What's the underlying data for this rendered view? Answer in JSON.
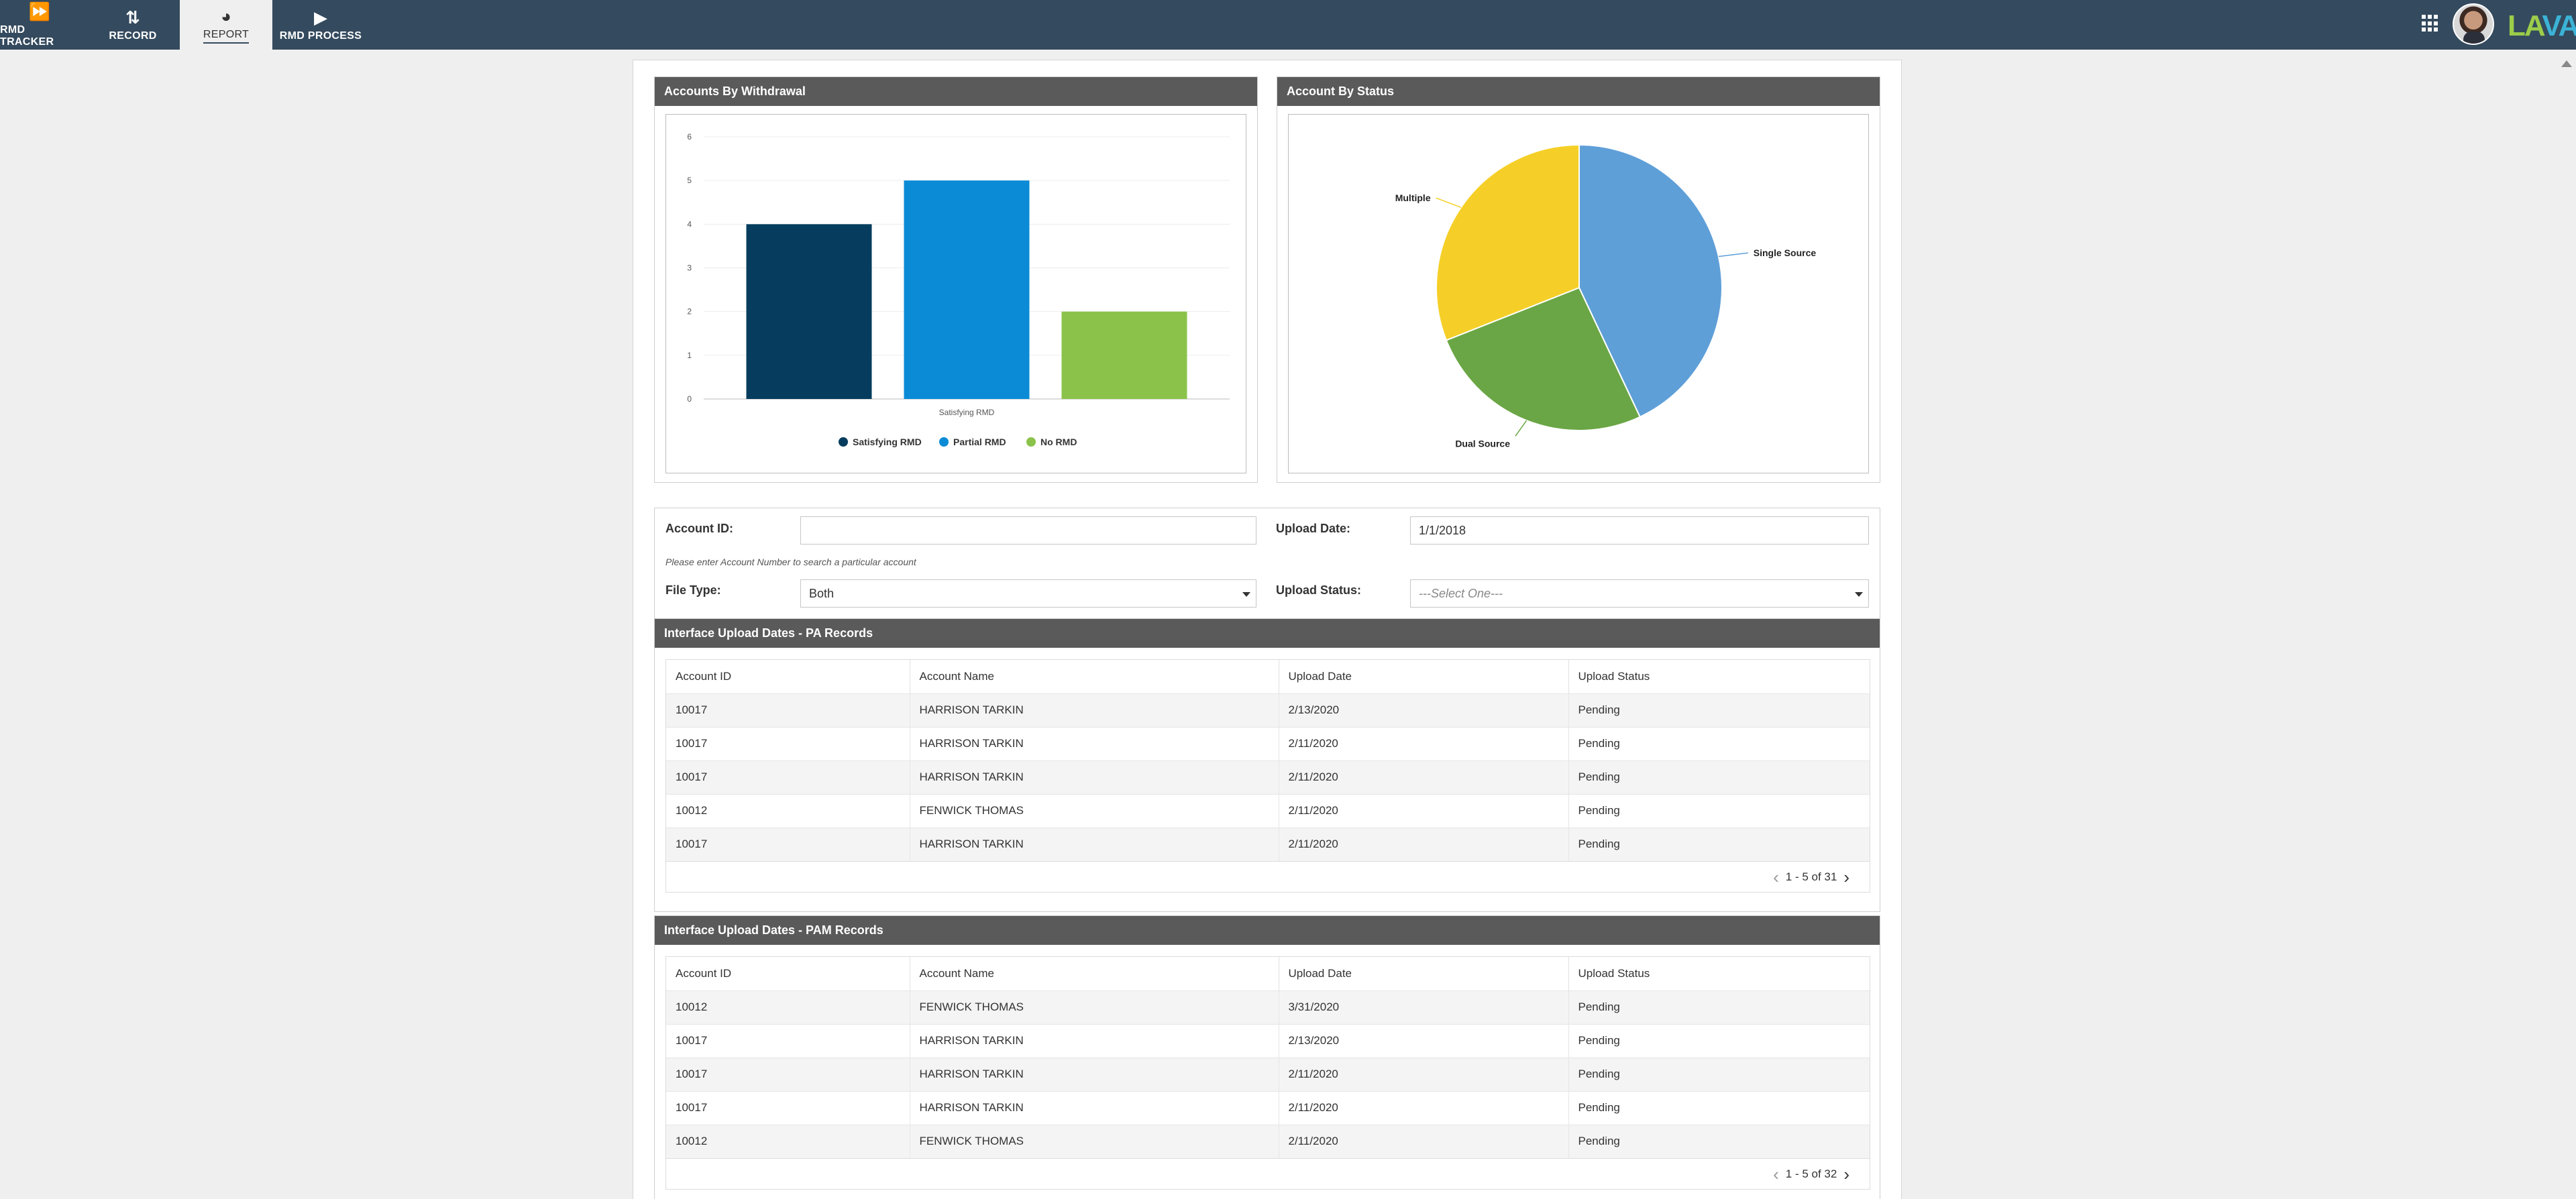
{
  "nav": {
    "items": [
      {
        "label": "RMD TRACKER",
        "icon": "⏩"
      },
      {
        "label": "RECORD",
        "icon": "⇅"
      },
      {
        "label": "REPORT",
        "icon": "◕"
      },
      {
        "label": "RMD PROCESS",
        "icon": "▶"
      }
    ],
    "active": "REPORT",
    "logo_part1": "LA",
    "logo_part2": "VA"
  },
  "charts_panel": {
    "withdrawal_title": "Accounts By Withdrawal",
    "status_title": "Account By Status"
  },
  "chart_data": [
    {
      "type": "bar",
      "categories": [
        "Satisfying RMD"
      ],
      "series": [
        {
          "name": "Satisfying RMD",
          "values": [
            4
          ],
          "color": "#063d5e"
        },
        {
          "name": "Partial RMD",
          "values": [
            5
          ],
          "color": "#0b8bd6"
        },
        {
          "name": "No RMD",
          "values": [
            2
          ],
          "color": "#8bc34a"
        }
      ],
      "yticks": [
        "0",
        "1",
        "2",
        "3",
        "4",
        "5",
        "6"
      ],
      "ylim": [
        0,
        6
      ],
      "legend": "bottom"
    },
    {
      "type": "pie",
      "slices": [
        {
          "label": "Single Source",
          "value": 43,
          "color": "#5f9fd8"
        },
        {
          "label": "Dual Source",
          "value": 26,
          "color": "#6aa645"
        },
        {
          "label": "Multiple",
          "value": 31,
          "color": "#f5cf27"
        }
      ]
    }
  ],
  "filters": {
    "account_id_label": "Account ID:",
    "account_id_value": "",
    "account_hint": "Please enter Account Number to search a particular account",
    "upload_date_label": "Upload Date:",
    "upload_date_value": "1/1/2018",
    "file_type_label": "File Type:",
    "file_type_value": "Both",
    "upload_status_label": "Upload Status:",
    "upload_status_value": "---Select One---"
  },
  "pa_table": {
    "title": "Interface Upload Dates - PA Records",
    "columns": [
      "Account ID",
      "Account Name",
      "Upload Date",
      "Upload Status"
    ],
    "rows": [
      [
        "10017",
        "HARRISON TARKIN",
        "2/13/2020",
        "Pending"
      ],
      [
        "10017",
        "HARRISON TARKIN",
        "2/11/2020",
        "Pending"
      ],
      [
        "10017",
        "HARRISON TARKIN",
        "2/11/2020",
        "Pending"
      ],
      [
        "10012",
        "FENWICK THOMAS",
        "2/11/2020",
        "Pending"
      ],
      [
        "10017",
        "HARRISON TARKIN",
        "2/11/2020",
        "Pending"
      ]
    ],
    "pager": "1 - 5 of 31"
  },
  "pam_table": {
    "title": "Interface Upload Dates - PAM Records",
    "columns": [
      "Account ID",
      "Account Name",
      "Upload Date",
      "Upload Status"
    ],
    "rows": [
      [
        "10012",
        "FENWICK THOMAS",
        "3/31/2020",
        "Pending"
      ],
      [
        "10017",
        "HARRISON TARKIN",
        "2/13/2020",
        "Pending"
      ],
      [
        "10017",
        "HARRISON TARKIN",
        "2/11/2020",
        "Pending"
      ],
      [
        "10017",
        "HARRISON TARKIN",
        "2/11/2020",
        "Pending"
      ],
      [
        "10012",
        "FENWICK THOMAS",
        "2/11/2020",
        "Pending"
      ]
    ],
    "pager": "1 - 5 of 32"
  }
}
